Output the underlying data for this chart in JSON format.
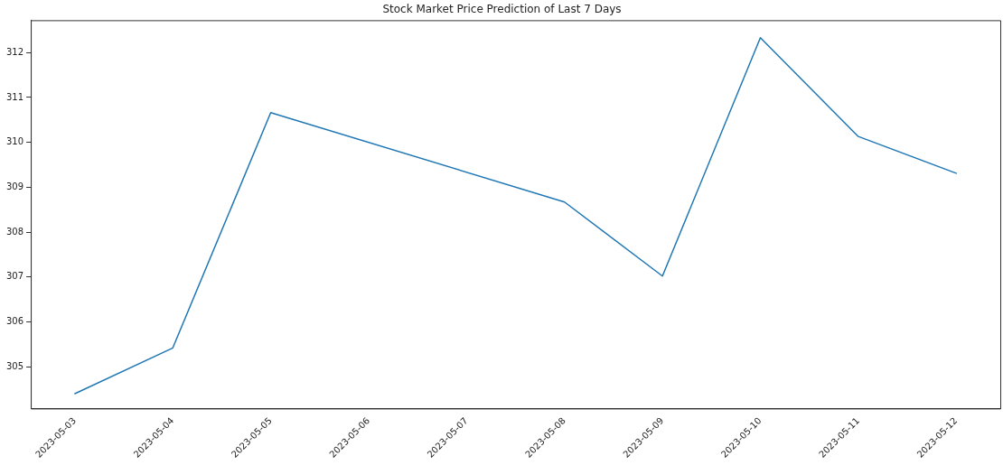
{
  "chart_data": {
    "type": "line",
    "title": "Stock Market Price Prediction of Last 7 Days",
    "x": [
      "2023-05-03",
      "2023-05-04",
      "2023-05-05",
      "2023-05-08",
      "2023-05-09",
      "2023-05-10",
      "2023-05-11",
      "2023-05-12"
    ],
    "series": [
      {
        "color": "#1f77b4",
        "values": [
          304.4,
          305.42,
          310.66,
          308.67,
          307.02,
          312.33,
          310.13,
          309.31
        ]
      }
    ],
    "xlim": [
      "2023-05-02T13:12",
      "2023-05-12T10:48"
    ],
    "xticks": [
      "2023-05-03",
      "2023-05-04",
      "2023-05-05",
      "2023-05-06",
      "2023-05-07",
      "2023-05-08",
      "2023-05-09",
      "2023-05-10",
      "2023-05-11",
      "2023-05-12"
    ],
    "ylim": [
      304.07,
      312.72
    ],
    "yticks": [
      305,
      306,
      307,
      308,
      309,
      310,
      311,
      312
    ],
    "grid": false,
    "legend": false,
    "marker": "none",
    "line_style": "solid"
  }
}
